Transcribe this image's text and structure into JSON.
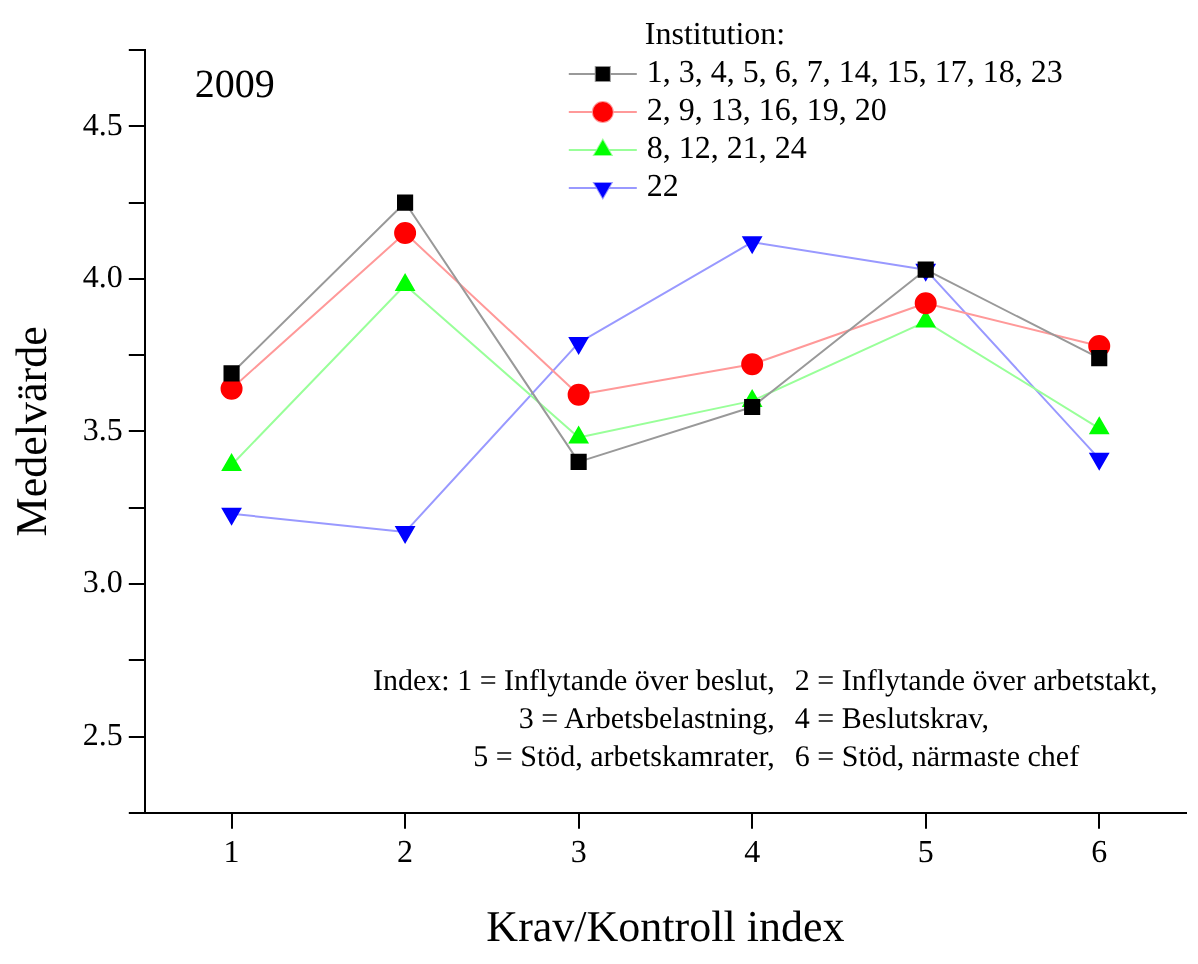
{
  "chart_data": {
    "type": "line",
    "xlabel": "Krav/Kontroll index",
    "ylabel": "Medelvärde",
    "legend_title": "Institution:",
    "legend": "top right",
    "grid": false,
    "line_style": "solid",
    "x": [
      1,
      2,
      3,
      4,
      5,
      6
    ],
    "xlim": [
      0.5,
      6.5
    ],
    "xticks": [
      1,
      2,
      3,
      4,
      5,
      6
    ],
    "ylim": [
      2.25,
      4.75
    ],
    "yticks": [
      {
        "value": 2.25,
        "label": null
      },
      2.5,
      {
        "value": 2.75,
        "label": null
      },
      {
        "value": 3,
        "label": "3.0"
      },
      {
        "value": 3.25,
        "label": null
      },
      3.5,
      {
        "value": 3.75,
        "label": null
      },
      {
        "value": 4,
        "label": "4.0"
      },
      {
        "value": 4.25,
        "label": null
      },
      4.5,
      {
        "value": 4.75,
        "label": null
      }
    ],
    "series": [
      {
        "name": "1, 3, 4, 5, 6, 7, 14, 15, 17, 18, 23",
        "color": "#000000",
        "marker": "square",
        "values": [
          3.69,
          4.25,
          3.4,
          3.58,
          4.03,
          3.74
        ]
      },
      {
        "name": "2, 9, 13, 16, 19, 20",
        "color": "#ff0000",
        "marker": "circle",
        "values": [
          3.64,
          4.15,
          3.62,
          3.72,
          3.92,
          3.78
        ]
      },
      {
        "name": "8, 12, 21, 24",
        "color": "#00ff00",
        "marker": "triangle",
        "values": [
          3.39,
          3.98,
          3.48,
          3.6,
          3.86,
          3.51
        ]
      },
      {
        "name": "22",
        "color": "#0000ff",
        "marker": "triangle-down",
        "values": [
          3.23,
          3.17,
          3.79,
          4.12,
          4.03,
          3.41
        ]
      }
    ],
    "annotations": [
      "2009",
      "Index: 1 = Inflytande över beslut,",
      "2 = Inflytande över arbetstakt,",
      "3 = Arbetsbelastning,",
      "4 = Beslutskrav,",
      "5 = Stöd, arbetskamrater,",
      "6 = Stöd, närmaste chef"
    ]
  }
}
